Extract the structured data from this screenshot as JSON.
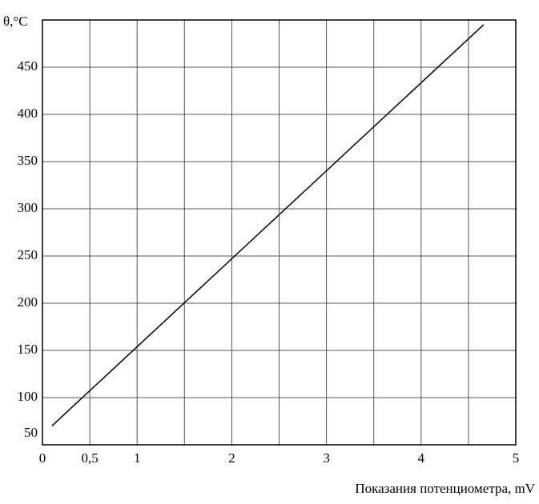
{
  "chart_data": {
    "type": "line",
    "x_label": "Показания потенциометра, mV",
    "y_label": "θ,°C",
    "x": [
      0.1,
      4.66
    ],
    "series": [
      {
        "values": [
          70,
          495
        ],
        "color": "#000000"
      }
    ],
    "xlim": [
      0,
      5
    ],
    "xticks": [
      0,
      {
        "value": 0.5,
        "label": "0,5"
      },
      1,
      2,
      3,
      4,
      5
    ],
    "xgrid_step": 0.5,
    "ylim": [
      50,
      500
    ],
    "yticks": [
      50,
      100,
      150,
      200,
      250,
      300,
      350,
      400,
      450
    ],
    "grid": true
  }
}
